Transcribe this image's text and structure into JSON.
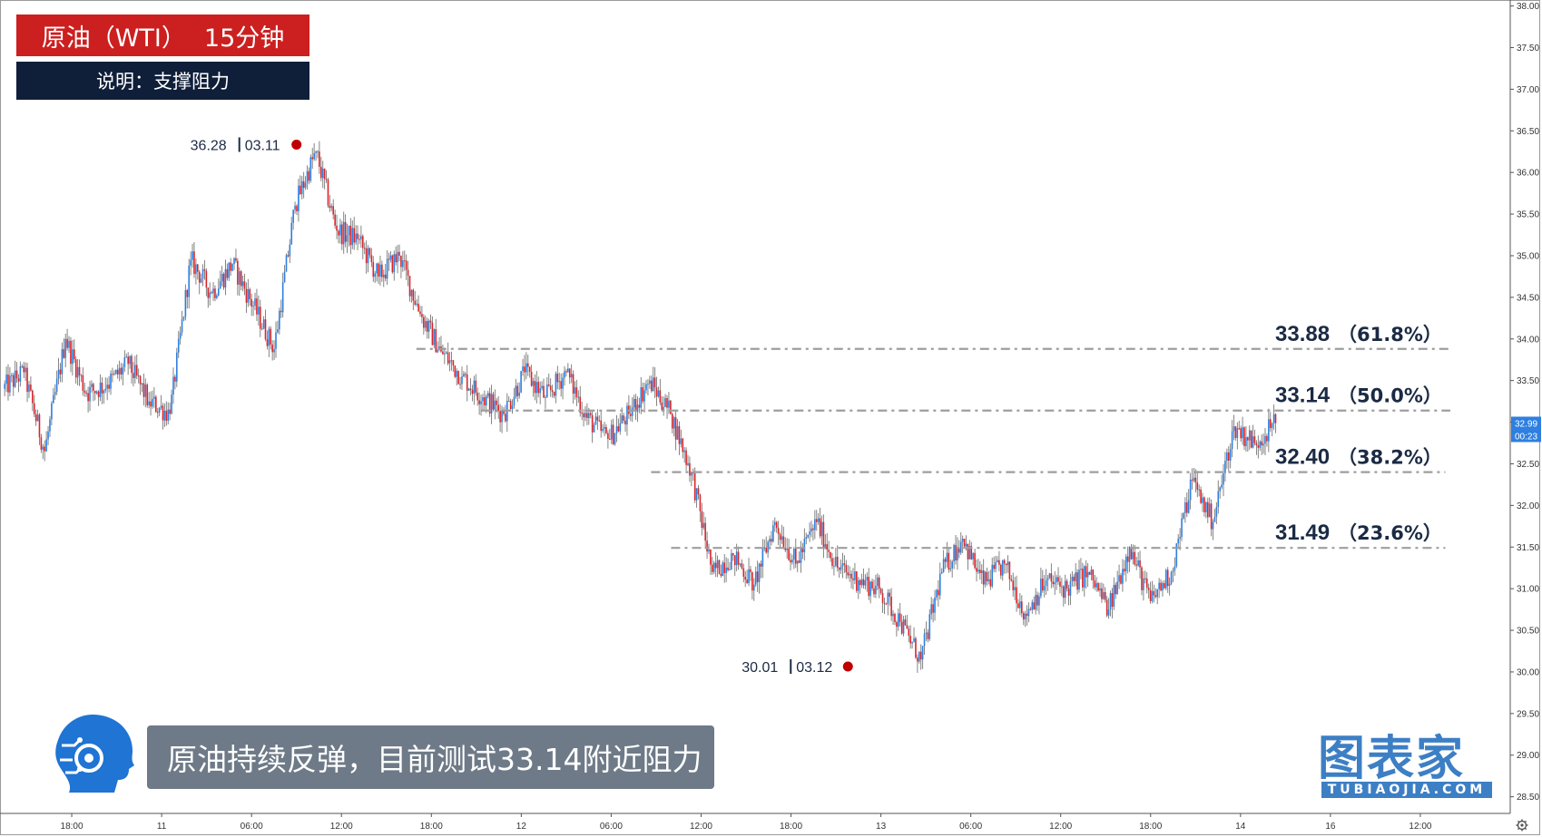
{
  "header": {
    "title_left": "原油（WTI）",
    "title_right": "15分钟",
    "subtitle": "说明：支撑阻力"
  },
  "caption": "原油持续反弹，目前测试33.14附近阻力",
  "brand": {
    "name": "图表家",
    "url_text": "TUBIAOJIA.COM",
    "color": "#3d7fc4"
  },
  "price_tag": {
    "price": "32.99",
    "countdown": "00:23",
    "color": "#2e7fe0"
  },
  "chart_data": {
    "type": "candlestick",
    "title": "原油（WTI） 15分钟",
    "y_axis": {
      "range": [
        28.3,
        38.05
      ],
      "ticks": [
        "38.00",
        "37.50",
        "37.00",
        "36.50",
        "36.00",
        "35.50",
        "35.00",
        "34.50",
        "34.00",
        "33.50",
        "33.00",
        "32.50",
        "32.00",
        "31.50",
        "31.00",
        "30.50",
        "30.00",
        "29.50",
        "29.00",
        "28.50"
      ]
    },
    "x_axis": {
      "range": [
        0,
        151
      ],
      "ticks": [
        {
          "label": "18:00",
          "x": 7
        },
        {
          "label": "11",
          "x": 16
        },
        {
          "label": "06:00",
          "x": 25
        },
        {
          "label": "12:00",
          "x": 34
        },
        {
          "label": "18:00",
          "x": 43
        },
        {
          "label": "12",
          "x": 52
        },
        {
          "label": "06:00",
          "x": 61
        },
        {
          "label": "12:00",
          "x": 70
        },
        {
          "label": "18:00",
          "x": 79
        },
        {
          "label": "13",
          "x": 88
        },
        {
          "label": "06:00",
          "x": 97
        },
        {
          "label": "12:00",
          "x": 106
        },
        {
          "label": "18:00",
          "x": 115
        },
        {
          "label": "14",
          "x": 124
        },
        {
          "label": "16",
          "x": 133
        },
        {
          "label": "12:00",
          "x": 142
        }
      ]
    },
    "colors": {
      "up": "#2e7fe0",
      "down": "#d9252b",
      "level": "#9e9e9e",
      "marker": "#c00000"
    },
    "fib_levels": [
      {
        "value": 33.88,
        "label": "33.88",
        "pct": "（61.8%）",
        "x_start": 41.5,
        "x_end": 145
      },
      {
        "value": 33.14,
        "label": "33.14",
        "pct": "（50.0%）",
        "x_start": 48,
        "x_end": 145
      },
      {
        "value": 32.4,
        "label": "32.40",
        "pct": "（38.2%）",
        "x_start": 65,
        "x_end": 144.5
      },
      {
        "value": 31.49,
        "label": "31.49",
        "pct": "（23.6%）",
        "x_start": 67,
        "x_end": 144.5
      }
    ],
    "annotations": [
      {
        "price": "36.28",
        "date": "03.11",
        "value": 36.28,
        "x": 29.5
      },
      {
        "price": "30.01",
        "date": "03.12",
        "value": 30.01,
        "x": 84.7
      }
    ],
    "segments": [
      [
        33.4,
        33.6
      ],
      [
        33.6,
        32.65
      ],
      [
        32.65,
        34.0
      ],
      [
        34.0,
        33.35
      ],
      [
        33.35,
        33.45
      ],
      [
        33.45,
        33.7
      ],
      [
        33.7,
        33.25
      ],
      [
        33.25,
        33.1
      ],
      [
        33.1,
        34.95
      ],
      [
        34.95,
        34.55
      ],
      [
        34.55,
        34.9
      ],
      [
        34.9,
        34.4
      ],
      [
        34.4,
        33.88
      ],
      [
        33.88,
        35.6
      ],
      [
        35.6,
        36.25
      ],
      [
        36.25,
        35.3
      ],
      [
        35.3,
        35.2
      ],
      [
        35.2,
        34.75
      ],
      [
        34.75,
        35.0
      ],
      [
        35.0,
        34.3
      ],
      [
        34.3,
        33.85
      ],
      [
        33.85,
        33.55
      ],
      [
        33.55,
        33.3
      ],
      [
        33.3,
        33.1
      ],
      [
        33.1,
        33.6
      ],
      [
        33.6,
        33.3
      ],
      [
        33.3,
        33.6
      ],
      [
        33.6,
        33.05
      ],
      [
        33.05,
        32.8
      ],
      [
        32.8,
        33.1
      ],
      [
        33.1,
        33.5
      ],
      [
        33.5,
        33.1
      ],
      [
        33.1,
        32.4
      ],
      [
        32.4,
        31.2
      ],
      [
        31.2,
        31.4
      ],
      [
        31.4,
        31.05
      ],
      [
        31.05,
        31.8
      ],
      [
        31.8,
        31.3
      ],
      [
        31.3,
        31.8
      ],
      [
        31.8,
        31.25
      ],
      [
        31.25,
        31.1
      ],
      [
        31.1,
        31.0
      ],
      [
        31.0,
        30.6
      ],
      [
        30.6,
        30.15
      ],
      [
        30.15,
        31.2
      ],
      [
        31.2,
        31.6
      ],
      [
        31.6,
        31.05
      ],
      [
        31.05,
        31.3
      ],
      [
        31.3,
        30.7
      ],
      [
        30.7,
        31.1
      ],
      [
        31.1,
        31.0
      ],
      [
        31.0,
        31.2
      ],
      [
        31.2,
        30.75
      ],
      [
        30.75,
        31.5
      ],
      [
        31.5,
        30.85
      ],
      [
        30.85,
        31.2
      ],
      [
        31.2,
        32.3
      ],
      [
        32.3,
        31.8
      ],
      [
        31.8,
        32.95
      ],
      [
        32.95,
        32.75
      ],
      [
        32.75,
        32.99
      ]
    ]
  }
}
